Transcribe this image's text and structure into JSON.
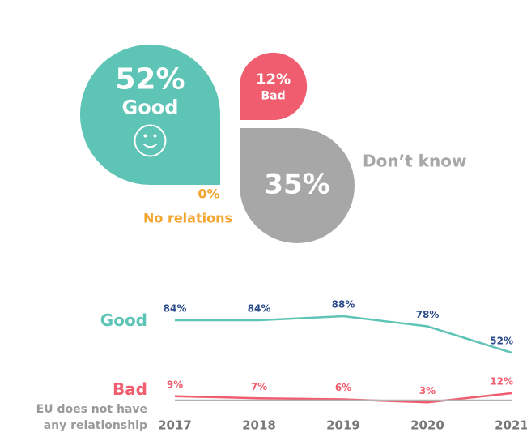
{
  "chart_data": [
    {
      "type": "petal",
      "categories": [
        "Good",
        "Bad",
        "Don’t know",
        "No relations"
      ],
      "values": [
        52,
        12,
        35,
        0
      ],
      "value_labels": [
        "52%",
        "12%",
        "35%",
        "0%"
      ],
      "colors": [
        "#5ec4b6",
        "#ef5d6e",
        "#a7a7a7",
        "#f3a530"
      ]
    },
    {
      "type": "line",
      "categories": [
        "2017",
        "2018",
        "2019",
        "2020",
        "2021"
      ],
      "ylim": [
        0,
        90
      ],
      "series": [
        {
          "name": "Good",
          "color": "#5ec4b6",
          "label_color": "#2a4a8a",
          "values": [
            84,
            84,
            88,
            78,
            52
          ],
          "value_labels": [
            "84%",
            "84%",
            "88%",
            "78%",
            "52%"
          ]
        },
        {
          "name": "Bad",
          "color": "#ef5d6e",
          "label_color": "#ef5d6e",
          "values": [
            9,
            7,
            6,
            3,
            12
          ],
          "value_labels": [
            "9%",
            "7%",
            "6%",
            "3%",
            "12%"
          ]
        },
        {
          "name": "EU does not have any relationship",
          "color": "#b3b3b3",
          "label_color": "#9a9a9a",
          "values": [
            5,
            5,
            5,
            5,
            5
          ]
        }
      ]
    }
  ]
}
